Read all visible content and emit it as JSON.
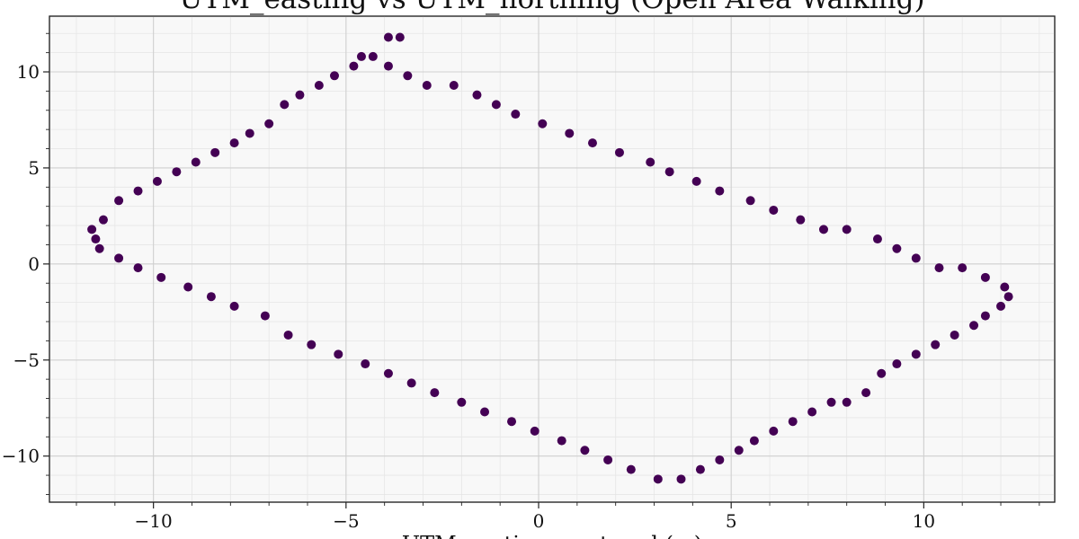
{
  "chart_data": {
    "type": "scatter",
    "title": "UTM_easting vs UTM_northing (Open Area Walking)",
    "xlabel": "UTM_easting, centered (m)",
    "ylabel": "",
    "xlim": [
      -12.7,
      13.4
    ],
    "ylim": [
      -12.4,
      12.9
    ],
    "xticks": [
      -10,
      -5,
      0,
      5,
      10
    ],
    "yticks": [
      -10,
      -5,
      0,
      5,
      10
    ],
    "xtick_labels": [
      "−10",
      "−5",
      "0",
      "5",
      "10"
    ],
    "ytick_labels": [
      "−10",
      "−5",
      "0",
      "5",
      "10"
    ],
    "xminor_step": 1,
    "yminor_step": 1,
    "grid": true,
    "legend": "none",
    "colors": {
      "point": "#440154",
      "background": "#f8f8f8"
    },
    "points": [
      [
        -11.6,
        1.8
      ],
      [
        -11.3,
        2.3
      ],
      [
        -10.9,
        3.3
      ],
      [
        -10.4,
        3.8
      ],
      [
        -9.9,
        4.3
      ],
      [
        -9.4,
        4.8
      ],
      [
        -8.9,
        5.3
      ],
      [
        -8.4,
        5.8
      ],
      [
        -7.9,
        6.3
      ],
      [
        -7.5,
        6.8
      ],
      [
        -7.0,
        7.3
      ],
      [
        -6.6,
        8.3
      ],
      [
        -6.2,
        8.8
      ],
      [
        -5.7,
        9.3
      ],
      [
        -5.3,
        9.8
      ],
      [
        -4.8,
        10.3
      ],
      [
        -4.6,
        10.8
      ],
      [
        -4.3,
        10.8
      ],
      [
        -3.9,
        11.8
      ],
      [
        -3.6,
        11.8
      ],
      [
        -3.9,
        10.3
      ],
      [
        -3.4,
        9.8
      ],
      [
        -2.9,
        9.3
      ],
      [
        -2.2,
        9.3
      ],
      [
        -1.6,
        8.8
      ],
      [
        -1.1,
        8.3
      ],
      [
        -0.6,
        7.8
      ],
      [
        0.1,
        7.3
      ],
      [
        0.8,
        6.8
      ],
      [
        1.4,
        6.3
      ],
      [
        2.1,
        5.8
      ],
      [
        2.9,
        5.3
      ],
      [
        3.4,
        4.8
      ],
      [
        4.1,
        4.3
      ],
      [
        4.7,
        3.8
      ],
      [
        5.5,
        3.3
      ],
      [
        6.1,
        2.8
      ],
      [
        6.8,
        2.3
      ],
      [
        7.4,
        1.8
      ],
      [
        8.0,
        1.8
      ],
      [
        8.8,
        1.3
      ],
      [
        9.3,
        0.8
      ],
      [
        9.8,
        0.3
      ],
      [
        10.4,
        -0.2
      ],
      [
        11.0,
        -0.2
      ],
      [
        11.6,
        -0.7
      ],
      [
        12.1,
        -1.2
      ],
      [
        12.2,
        -1.7
      ],
      [
        12.0,
        -2.2
      ],
      [
        11.6,
        -2.7
      ],
      [
        11.3,
        -3.2
      ],
      [
        10.8,
        -3.7
      ],
      [
        10.3,
        -4.2
      ],
      [
        9.8,
        -4.7
      ],
      [
        9.3,
        -5.2
      ],
      [
        8.9,
        -5.7
      ],
      [
        8.5,
        -6.7
      ],
      [
        8.0,
        -7.2
      ],
      [
        7.6,
        -7.2
      ],
      [
        7.1,
        -7.7
      ],
      [
        6.6,
        -8.2
      ],
      [
        6.1,
        -8.7
      ],
      [
        5.6,
        -9.2
      ],
      [
        5.2,
        -9.7
      ],
      [
        4.7,
        -10.2
      ],
      [
        4.2,
        -10.7
      ],
      [
        3.7,
        -11.2
      ],
      [
        3.1,
        -11.2
      ],
      [
        2.4,
        -10.7
      ],
      [
        1.8,
        -10.2
      ],
      [
        1.2,
        -9.7
      ],
      [
        0.6,
        -9.2
      ],
      [
        -0.1,
        -8.7
      ],
      [
        -0.7,
        -8.2
      ],
      [
        -1.4,
        -7.7
      ],
      [
        -2.0,
        -7.2
      ],
      [
        -2.7,
        -6.7
      ],
      [
        -3.3,
        -6.2
      ],
      [
        -3.9,
        -5.7
      ],
      [
        -4.5,
        -5.2
      ],
      [
        -5.2,
        -4.7
      ],
      [
        -5.9,
        -4.2
      ],
      [
        -6.5,
        -3.7
      ],
      [
        -7.1,
        -2.7
      ],
      [
        -7.9,
        -2.2
      ],
      [
        -8.5,
        -1.7
      ],
      [
        -9.1,
        -1.2
      ],
      [
        -9.8,
        -0.7
      ],
      [
        -10.4,
        -0.2
      ],
      [
        -10.9,
        0.3
      ],
      [
        -11.4,
        0.8
      ],
      [
        -11.5,
        1.3
      ]
    ]
  }
}
